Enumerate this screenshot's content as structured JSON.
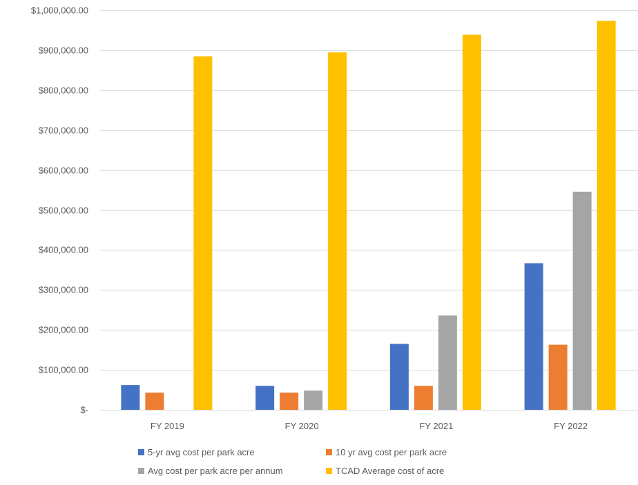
{
  "chart_data": {
    "type": "bar",
    "categories": [
      "FY 2019",
      "FY 2020",
      "FY 2021",
      "FY 2022"
    ],
    "series": [
      {
        "name": "5-yr avg cost per park acre",
        "color": "#4472C4",
        "values": [
          62000,
          60000,
          165000,
          367000
        ]
      },
      {
        "name": "10 yr avg cost per park acre",
        "color": "#ED7D31",
        "values": [
          43000,
          43000,
          60000,
          163000
        ]
      },
      {
        "name": "Avg cost per park acre per annum",
        "color": "#A5A5A5",
        "values": [
          0,
          48000,
          236000,
          546000
        ]
      },
      {
        "name": "TCAD Average cost of acre",
        "color": "#FFC000",
        "values": [
          885000,
          895000,
          939000,
          974000
        ]
      }
    ],
    "ylim": [
      0,
      1000000
    ],
    "yticks": [
      {
        "value": 0,
        "label": "$-"
      },
      {
        "value": 100000,
        "label": "$100,000.00"
      },
      {
        "value": 200000,
        "label": "$200,000.00"
      },
      {
        "value": 300000,
        "label": "$300,000.00"
      },
      {
        "value": 400000,
        "label": "$400,000.00"
      },
      {
        "value": 500000,
        "label": "$500,000.00"
      },
      {
        "value": 600000,
        "label": "$600,000.00"
      },
      {
        "value": 700000,
        "label": "$700,000.00"
      },
      {
        "value": 800000,
        "label": "$800,000.00"
      },
      {
        "value": 900000,
        "label": "$900,000.00"
      },
      {
        "value": 1000000,
        "label": "$1,000,000.00"
      }
    ],
    "grid": true,
    "legend_position": "bottom",
    "gridline_color": "#D9D9D9",
    "tick_label_color": "#595959"
  }
}
